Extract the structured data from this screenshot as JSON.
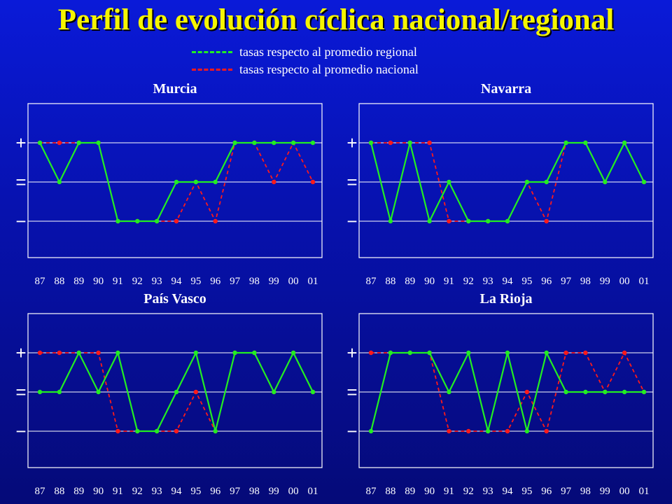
{
  "title": "Perfil de evolución cíclica nacional/regional",
  "legend": [
    {
      "label": "tasas respecto al promedio regional",
      "color": "#22ee22"
    },
    {
      "label": "tasas respecto al promedio nacional",
      "color": "#ff1a1a"
    }
  ],
  "colors": {
    "regional": "#22ee22",
    "nacional": "#ff1a1a",
    "panel_title": "#ffffff"
  },
  "chart_data": [
    {
      "type": "line",
      "title": "Murcia",
      "categories": [
        "87",
        "88",
        "89",
        "90",
        "91",
        "92",
        "93",
        "94",
        "95",
        "96",
        "97",
        "98",
        "99",
        "00",
        "01"
      ],
      "y_levels": [
        "+",
        "=",
        "−"
      ],
      "ylim": [
        -1,
        1
      ],
      "series": [
        {
          "name": "tasas respecto al promedio regional",
          "values": [
            1,
            0,
            1,
            1,
            -1,
            -1,
            -1,
            0,
            0,
            0,
            1,
            1,
            1,
            1,
            1
          ]
        },
        {
          "name": "tasas respecto al promedio nacional",
          "values": [
            1,
            1,
            1,
            1,
            -1,
            -1,
            -1,
            -1,
            0,
            -1,
            1,
            1,
            0,
            1,
            0
          ]
        }
      ]
    },
    {
      "type": "line",
      "title": "Navarra",
      "categories": [
        "87",
        "88",
        "89",
        "90",
        "91",
        "92",
        "93",
        "94",
        "95",
        "96",
        "97",
        "98",
        "99",
        "00",
        "01"
      ],
      "y_levels": [
        "+",
        "=",
        "−"
      ],
      "ylim": [
        -1,
        1
      ],
      "series": [
        {
          "name": "tasas respecto al promedio regional",
          "values": [
            1,
            -1,
            1,
            -1,
            0,
            -1,
            -1,
            -1,
            0,
            0,
            1,
            1,
            0,
            1,
            0
          ]
        },
        {
          "name": "tasas respecto al promedio nacional",
          "values": [
            1,
            1,
            1,
            1,
            -1,
            -1,
            -1,
            -1,
            0,
            -1,
            1,
            1,
            0,
            1,
            0
          ]
        }
      ]
    },
    {
      "type": "line",
      "title": "País Vasco",
      "categories": [
        "87",
        "88",
        "89",
        "90",
        "91",
        "92",
        "93",
        "94",
        "95",
        "96",
        "97",
        "98",
        "99",
        "00",
        "01"
      ],
      "y_levels": [
        "+",
        "=",
        "−"
      ],
      "ylim": [
        -1,
        1
      ],
      "series": [
        {
          "name": "tasas respecto al promedio regional",
          "values": [
            0,
            0,
            1,
            0,
            1,
            -1,
            -1,
            0,
            1,
            -1,
            1,
            1,
            0,
            1,
            0
          ]
        },
        {
          "name": "tasas respecto al promedio nacional",
          "values": [
            1,
            1,
            1,
            1,
            -1,
            -1,
            -1,
            -1,
            0,
            -1,
            1,
            1,
            0,
            1,
            0
          ]
        }
      ]
    },
    {
      "type": "line",
      "title": "La Rioja",
      "categories": [
        "87",
        "88",
        "89",
        "90",
        "91",
        "92",
        "93",
        "94",
        "95",
        "96",
        "97",
        "98",
        "99",
        "00",
        "01"
      ],
      "y_levels": [
        "+",
        "=",
        "−"
      ],
      "ylim": [
        -1,
        1
      ],
      "series": [
        {
          "name": "tasas respecto al promedio regional",
          "values": [
            -1,
            1,
            1,
            1,
            0,
            1,
            -1,
            1,
            -1,
            1,
            0,
            0,
            0,
            0,
            0
          ]
        },
        {
          "name": "tasas respecto al promedio nacional",
          "values": [
            1,
            1,
            1,
            1,
            -1,
            -1,
            -1,
            -1,
            0,
            -1,
            1,
            1,
            0,
            1,
            0
          ]
        }
      ]
    }
  ]
}
